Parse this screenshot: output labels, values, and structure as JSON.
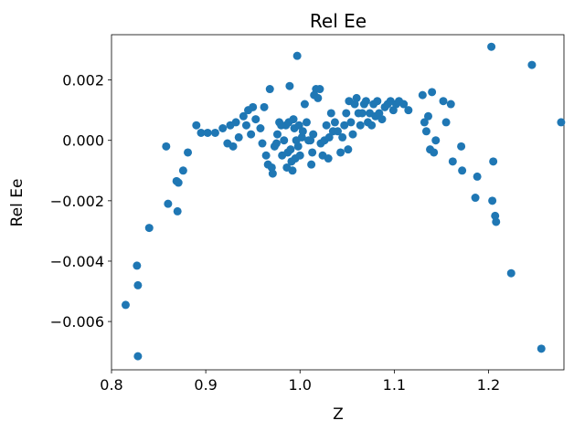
{
  "chart_data": {
    "type": "scatter",
    "title": "Rel Ee",
    "xlabel": "Z",
    "ylabel": "Rel Ee",
    "xlim": [
      0.8,
      1.28
    ],
    "ylim": [
      -0.0076,
      0.0035
    ],
    "xticks": [
      0.8,
      0.9,
      1.0,
      1.1,
      1.2
    ],
    "xtick_labels": [
      "0.8",
      "0.9",
      "1.0",
      "1.1",
      "1.2"
    ],
    "yticks": [
      -0.006,
      -0.004,
      -0.002,
      0.0,
      0.002
    ],
    "ytick_labels": [
      "−0.006",
      "−0.004",
      "−0.002",
      "0.000",
      "0.002"
    ],
    "grid": false,
    "marker_color": "#1f77b4",
    "points": [
      {
        "x": 0.815,
        "y": -0.00545
      },
      {
        "x": 0.827,
        "y": -0.00415
      },
      {
        "x": 0.828,
        "y": -0.0048
      },
      {
        "x": 0.828,
        "y": -0.00715
      },
      {
        "x": 0.84,
        "y": -0.0029
      },
      {
        "x": 0.858,
        "y": -0.0002
      },
      {
        "x": 0.86,
        "y": -0.0021
      },
      {
        "x": 0.869,
        "y": -0.00135
      },
      {
        "x": 0.871,
        "y": -0.0014
      },
      {
        "x": 0.87,
        "y": -0.00235
      },
      {
        "x": 0.876,
        "y": -0.001
      },
      {
        "x": 0.881,
        "y": -0.0004
      },
      {
        "x": 0.89,
        "y": 0.0005
      },
      {
        "x": 0.895,
        "y": 0.00025
      },
      {
        "x": 0.902,
        "y": 0.00025
      },
      {
        "x": 0.91,
        "y": 0.00025
      },
      {
        "x": 0.918,
        "y": 0.0004
      },
      {
        "x": 0.923,
        "y": -0.0001
      },
      {
        "x": 0.926,
        "y": 0.0005
      },
      {
        "x": 0.929,
        "y": -0.0002
      },
      {
        "x": 0.932,
        "y": 0.0006
      },
      {
        "x": 0.935,
        "y": 0.0001
      },
      {
        "x": 0.94,
        "y": 0.0008
      },
      {
        "x": 0.943,
        "y": 0.0005
      },
      {
        "x": 0.945,
        "y": 0.001
      },
      {
        "x": 0.948,
        "y": 0.0002
      },
      {
        "x": 0.95,
        "y": 0.0011
      },
      {
        "x": 0.953,
        "y": 0.0007
      },
      {
        "x": 0.958,
        "y": 0.0004
      },
      {
        "x": 0.96,
        "y": -0.0001
      },
      {
        "x": 0.962,
        "y": 0.0011
      },
      {
        "x": 0.964,
        "y": -0.0005
      },
      {
        "x": 0.966,
        "y": -0.0008
      },
      {
        "x": 0.968,
        "y": 0.0017
      },
      {
        "x": 0.97,
        "y": -0.0009
      },
      {
        "x": 0.971,
        "y": -0.0011
      },
      {
        "x": 0.973,
        "y": -0.0002
      },
      {
        "x": 0.975,
        "y": -0.0001
      },
      {
        "x": 0.976,
        "y": 0.0002
      },
      {
        "x": 0.978,
        "y": 0.0006
      },
      {
        "x": 0.98,
        "y": 0.0005
      },
      {
        "x": 0.981,
        "y": -0.0005
      },
      {
        "x": 0.983,
        "y": 0.0
      },
      {
        "x": 0.985,
        "y": 0.0005
      },
      {
        "x": 0.986,
        "y": -0.0009
      },
      {
        "x": 0.987,
        "y": -0.0004
      },
      {
        "x": 0.988,
        "y": 0.0006
      },
      {
        "x": 0.989,
        "y": 0.0018
      },
      {
        "x": 0.99,
        "y": -0.0003
      },
      {
        "x": 0.991,
        "y": -0.0007
      },
      {
        "x": 0.992,
        "y": -0.001
      },
      {
        "x": 0.993,
        "y": 0.0007
      },
      {
        "x": 0.994,
        "y": 0.0004
      },
      {
        "x": 0.995,
        "y": -0.0006
      },
      {
        "x": 0.996,
        "y": 0.0
      },
      {
        "x": 0.997,
        "y": 0.0028
      },
      {
        "x": 0.998,
        "y": -0.0002
      },
      {
        "x": 0.999,
        "y": 0.0005
      },
      {
        "x": 1.0,
        "y": -0.0005
      },
      {
        "x": 1.002,
        "y": 0.0001
      },
      {
        "x": 1.003,
        "y": 0.0003
      },
      {
        "x": 1.005,
        "y": 0.0012
      },
      {
        "x": 1.007,
        "y": 0.0006
      },
      {
        "x": 1.009,
        "y": 0.0
      },
      {
        "x": 1.011,
        "y": 0.0
      },
      {
        "x": 1.012,
        "y": -0.0008
      },
      {
        "x": 1.013,
        "y": -0.0004
      },
      {
        "x": 1.014,
        "y": 0.0002
      },
      {
        "x": 1.015,
        "y": 0.0015
      },
      {
        "x": 1.017,
        "y": 0.0017
      },
      {
        "x": 1.019,
        "y": 0.0014
      },
      {
        "x": 1.021,
        "y": 0.0017
      },
      {
        "x": 1.022,
        "y": -0.0001
      },
      {
        "x": 1.024,
        "y": -0.0005
      },
      {
        "x": 1.026,
        "y": 0.0
      },
      {
        "x": 1.028,
        "y": 0.0005
      },
      {
        "x": 1.03,
        "y": -0.0006
      },
      {
        "x": 1.031,
        "y": 0.0001
      },
      {
        "x": 1.033,
        "y": 0.0009
      },
      {
        "x": 1.035,
        "y": 0.0003
      },
      {
        "x": 1.037,
        "y": 0.0006
      },
      {
        "x": 1.04,
        "y": 0.0003
      },
      {
        "x": 1.043,
        "y": -0.0004
      },
      {
        "x": 1.045,
        "y": 0.0001
      },
      {
        "x": 1.047,
        "y": 0.0005
      },
      {
        "x": 1.049,
        "y": 0.0009
      },
      {
        "x": 1.051,
        "y": -0.0003
      },
      {
        "x": 1.052,
        "y": 0.0013
      },
      {
        "x": 1.054,
        "y": 0.0006
      },
      {
        "x": 1.056,
        "y": 0.0002
      },
      {
        "x": 1.058,
        "y": 0.0012
      },
      {
        "x": 1.06,
        "y": 0.0014
      },
      {
        "x": 1.062,
        "y": 0.0009
      },
      {
        "x": 1.064,
        "y": 0.0005
      },
      {
        "x": 1.066,
        "y": 0.0009
      },
      {
        "x": 1.068,
        "y": 0.0012
      },
      {
        "x": 1.07,
        "y": 0.0013
      },
      {
        "x": 1.072,
        "y": 0.0006
      },
      {
        "x": 1.074,
        "y": 0.0009
      },
      {
        "x": 1.076,
        "y": 0.0005
      },
      {
        "x": 1.078,
        "y": 0.0012
      },
      {
        "x": 1.08,
        "y": 0.0008
      },
      {
        "x": 1.082,
        "y": 0.0013
      },
      {
        "x": 1.084,
        "y": 0.0009
      },
      {
        "x": 1.087,
        "y": 0.0007
      },
      {
        "x": 1.09,
        "y": 0.0011
      },
      {
        "x": 1.093,
        "y": 0.0012
      },
      {
        "x": 1.096,
        "y": 0.0013
      },
      {
        "x": 1.099,
        "y": 0.001
      },
      {
        "x": 1.102,
        "y": 0.0012
      },
      {
        "x": 1.105,
        "y": 0.0013
      },
      {
        "x": 1.11,
        "y": 0.0012
      },
      {
        "x": 1.115,
        "y": 0.001
      },
      {
        "x": 1.13,
        "y": 0.0015
      },
      {
        "x": 1.132,
        "y": 0.0006
      },
      {
        "x": 1.134,
        "y": 0.0003
      },
      {
        "x": 1.136,
        "y": 0.0008
      },
      {
        "x": 1.138,
        "y": -0.0003
      },
      {
        "x": 1.14,
        "y": 0.0016
      },
      {
        "x": 1.142,
        "y": -0.0004
      },
      {
        "x": 1.144,
        "y": 0.0
      },
      {
        "x": 1.152,
        "y": 0.0013
      },
      {
        "x": 1.155,
        "y": 0.0006
      },
      {
        "x": 1.16,
        "y": 0.0012
      },
      {
        "x": 1.162,
        "y": -0.0007
      },
      {
        "x": 1.171,
        "y": -0.0002
      },
      {
        "x": 1.172,
        "y": -0.001
      },
      {
        "x": 1.186,
        "y": -0.0019
      },
      {
        "x": 1.188,
        "y": -0.0012
      },
      {
        "x": 1.203,
        "y": 0.0031
      },
      {
        "x": 1.204,
        "y": -0.002
      },
      {
        "x": 1.205,
        "y": -0.0007
      },
      {
        "x": 1.207,
        "y": -0.0025
      },
      {
        "x": 1.208,
        "y": -0.0027
      },
      {
        "x": 1.224,
        "y": -0.0044
      },
      {
        "x": 1.246,
        "y": 0.0025
      },
      {
        "x": 1.256,
        "y": -0.0069
      },
      {
        "x": 1.277,
        "y": 0.0006
      }
    ]
  }
}
